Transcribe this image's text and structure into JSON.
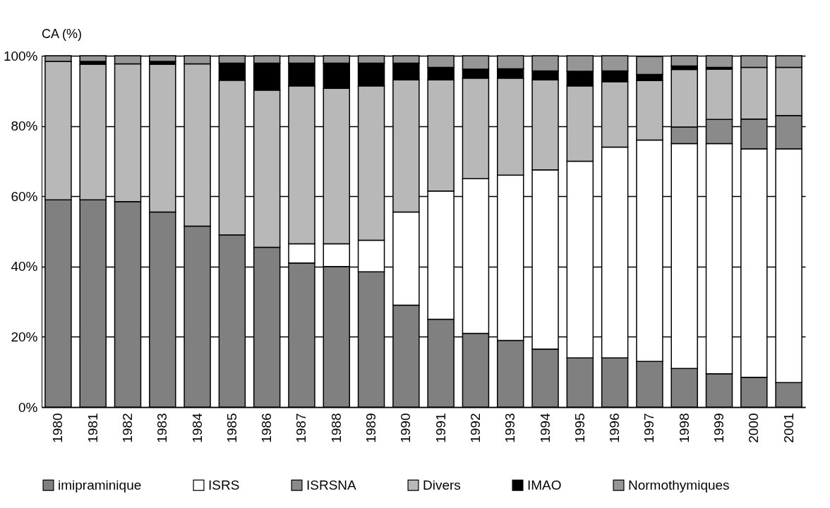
{
  "chart_data": {
    "type": "bar",
    "ylabel": "CA (%)",
    "stacked": true,
    "grid": "y",
    "legend": "bottom",
    "categories": [
      "1980",
      "1981",
      "1982",
      "1983",
      "1984",
      "1985",
      "1986",
      "1987",
      "1988",
      "1989",
      "1990",
      "1991",
      "1992",
      "1993",
      "1994",
      "1995",
      "1996",
      "1997",
      "1998",
      "1999",
      "2000",
      "2001"
    ],
    "ylim": [
      0,
      100
    ],
    "yticks": [
      {
        "value": 0,
        "label": "0%"
      },
      {
        "value": 20,
        "label": "20%"
      },
      {
        "value": 40,
        "label": "40%"
      },
      {
        "value": 60,
        "label": "60%"
      },
      {
        "value": 80,
        "label": "80%"
      },
      {
        "value": 100,
        "label": "100%"
      }
    ],
    "series": [
      {
        "name": "imipraminique",
        "color": "#808080",
        "values": [
          59,
          59,
          58.5,
          55.5,
          51.5,
          49,
          45.5,
          41,
          40,
          38.5,
          29,
          25,
          21,
          19,
          16.5,
          14,
          14,
          13,
          11,
          9.5,
          8.5,
          7
        ]
      },
      {
        "name": "ISRS",
        "color": "#ffffff",
        "values": [
          0,
          0,
          0,
          0,
          0,
          0,
          0,
          5.5,
          6.5,
          9,
          26.5,
          36.5,
          44,
          47,
          51,
          56,
          60,
          63,
          64,
          65.5,
          65,
          66.5
        ]
      },
      {
        "name": "ISRSNA",
        "color": "#8a8a8a",
        "values": [
          0,
          0,
          0,
          0,
          0,
          0,
          0,
          0,
          0,
          0,
          0,
          0,
          0,
          0,
          0,
          0,
          0,
          null,
          4.7,
          6.9,
          8.5,
          9.5
        ]
      },
      {
        "name": "Divers",
        "color": "#b8b8b8",
        "values": [
          39.4,
          38.6,
          39.2,
          42.1,
          46.2,
          44,
          44.7,
          44.9,
          44.2,
          43.9,
          37.6,
          31.6,
          28.6,
          27.6,
          25.6,
          21.4,
          18.6,
          16.9,
          16.4,
          14.3,
          14.7,
          13.7
        ]
      },
      {
        "name": "IMAO",
        "color": "#000000",
        "values": [
          0,
          0.8,
          0,
          0.8,
          0,
          4.9,
          7.7,
          6.5,
          7.2,
          6.5,
          4.8,
          3.6,
          2.6,
          2.7,
          2.6,
          4.2,
          3.1,
          1.8,
          1,
          0.5,
          0,
          0
        ]
      },
      {
        "name": "Normothymiques",
        "color": "#969696",
        "values": [
          1.6,
          1.6,
          2.3,
          1.6,
          2.3,
          2.1,
          2.1,
          2.1,
          2.1,
          2.1,
          2.1,
          3.3,
          3.8,
          3.7,
          4.3,
          4.4,
          4.3,
          5.1,
          2.9,
          3.3,
          3.3,
          3.3
        ]
      }
    ]
  }
}
